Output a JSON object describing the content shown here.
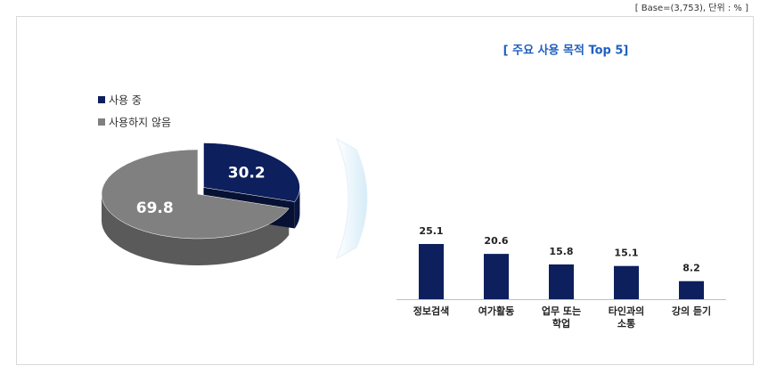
{
  "note": "[ Base=(3,753), 단위 : % ]",
  "chart_data": [
    {
      "type": "pie",
      "categories": [
        "사용 중",
        "사용하지 않음"
      ],
      "values": [
        30.2,
        69.8
      ],
      "colors": [
        "#0d1f5c",
        "#808080"
      ],
      "legend": "top-left"
    },
    {
      "type": "bar",
      "title": "[ 주요 사용 목적 Top 5]",
      "categories": [
        "정보검색",
        "여가활동",
        "업무 또는\n학업",
        "타인과의\n소통",
        "강의 듣기"
      ],
      "values": [
        25.1,
        20.6,
        15.8,
        15.1,
        8.2
      ],
      "color": "#0d1f5c"
    }
  ]
}
